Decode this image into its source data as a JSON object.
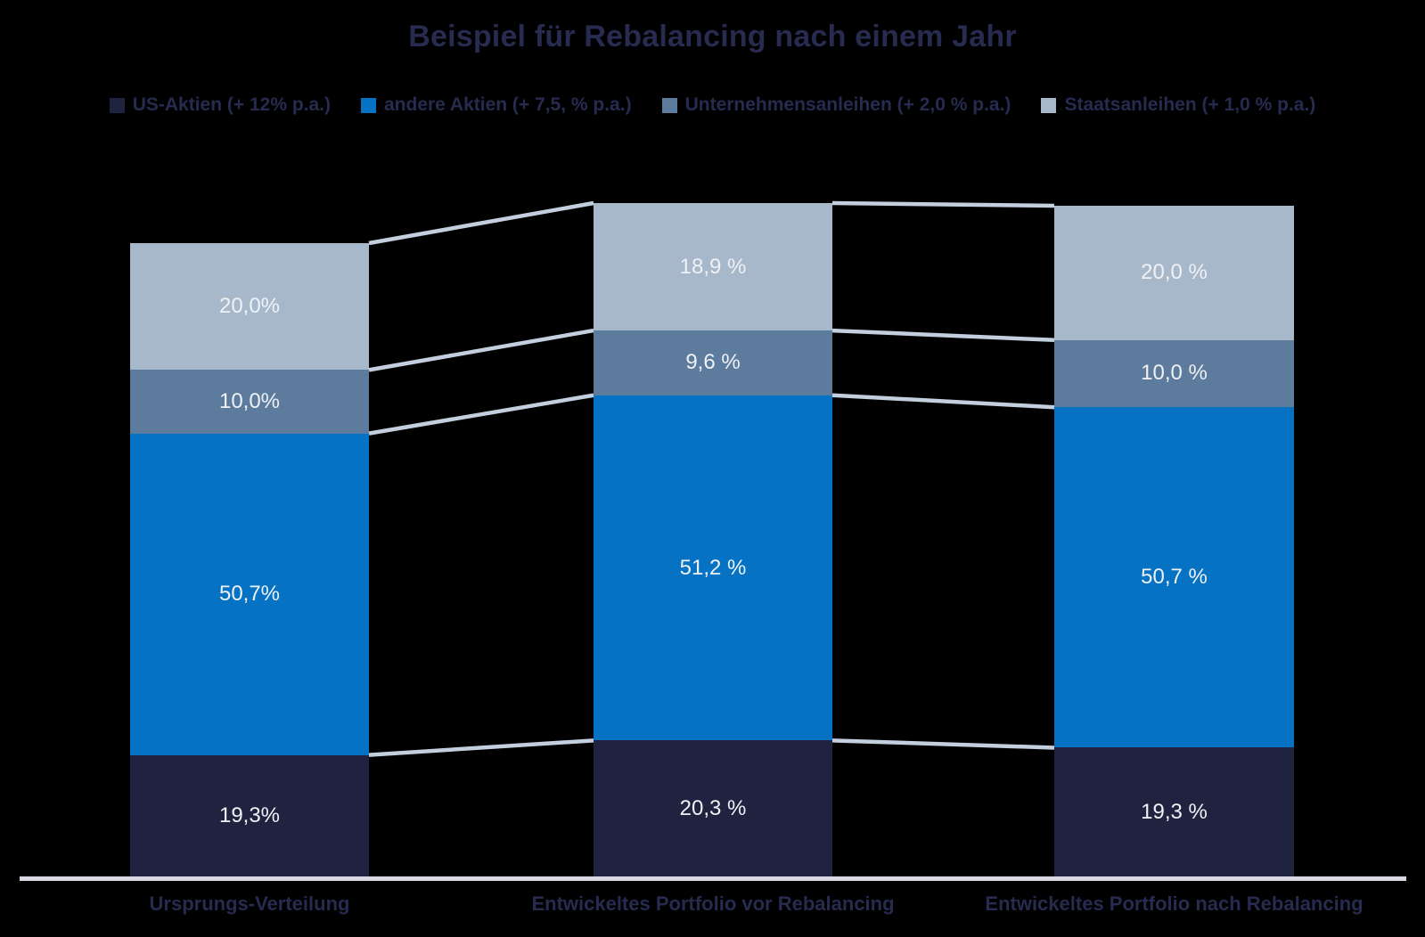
{
  "title": "Beispiel für Rebalancing nach einem Jahr",
  "colors": {
    "background": "#000000",
    "title_text": "#272b4f",
    "segment_label_text": "#eff1f5",
    "connector_line": "#c3cfde",
    "axis_line": "#d8d8e5",
    "navy": "#202340",
    "blue": "#0572c3",
    "slate": "#5c7b9d",
    "light": "#a8b8cb"
  },
  "legend": [
    {
      "label": "US-Aktien (+ 12% p.a.)",
      "color": "#202340"
    },
    {
      "label": "andere Aktien (+ 7,5, % p.a.)",
      "color": "#0572c3"
    },
    {
      "label": "Unternehmensanleihen (+ 2,0 % p.a.)",
      "color": "#5c7b9d"
    },
    {
      "label": "Staatsanleihen (+ 1,0 % p.a.)",
      "color": "#a8b8cb"
    }
  ],
  "chart_data": {
    "type": "bar",
    "stacked": true,
    "title": "Beispiel für Rebalancing nach einem Jahr",
    "categories": [
      "Ursprungs-Verteilung",
      "Entwickeltes Portfolio vor Rebalancing",
      "Entwickeltes Portfolio nach Rebalancing"
    ],
    "series": [
      {
        "name": "US-Aktien (+ 12% p.a.)",
        "color": "#202340",
        "values": [
          19.3,
          20.3,
          19.3
        ],
        "labels": [
          "19,3%",
          "20,3 %",
          "19,3 %"
        ]
      },
      {
        "name": "andere Aktien (+ 7,5, % p.a.)",
        "color": "#0572c3",
        "values": [
          50.7,
          51.2,
          50.7
        ],
        "labels": [
          "50,7%",
          "51,2 %",
          "50,7 %"
        ]
      },
      {
        "name": "Unternehmensanleihen (+ 2,0 % p.a.)",
        "color": "#5c7b9d",
        "values": [
          10.0,
          9.6,
          10.0
        ],
        "labels": [
          "10,0%",
          "9,6 %",
          "10,0 %"
        ]
      },
      {
        "name": "Staatsanleihen (+ 1,0 % p.a.)",
        "color": "#a8b8cb",
        "values": [
          20.0,
          18.9,
          20.0
        ],
        "labels": [
          "20,0%",
          "18,9 %",
          "20,0 %"
        ]
      }
    ],
    "bar_relative_totals": [
      1.0,
      1.063,
      1.059
    ],
    "legend_position": "top",
    "grid": false,
    "connector_lines": true,
    "value_format": "percent-comma-decimal"
  }
}
